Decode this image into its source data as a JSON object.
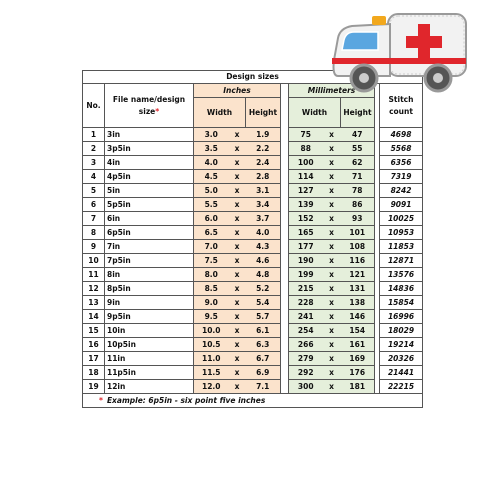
{
  "table": {
    "title": "Design sizes",
    "group_headers": {
      "inches": "Inches",
      "millimeters": "Millimeters"
    },
    "headers": {
      "no": "No.",
      "file": "File name/design size",
      "required_mark": "*",
      "width": "Width",
      "height": "Height",
      "stitch": "Stitch count"
    },
    "separator": "x",
    "rows": [
      [
        "1",
        "3in",
        "3.0",
        "1.9",
        "75",
        "47",
        "4698"
      ],
      [
        "2",
        "3p5in",
        "3.5",
        "2.2",
        "88",
        "55",
        "5568"
      ],
      [
        "3",
        "4in",
        "4.0",
        "2.4",
        "100",
        "62",
        "6356"
      ],
      [
        "4",
        "4p5in",
        "4.5",
        "2.8",
        "114",
        "71",
        "7319"
      ],
      [
        "5",
        "5in",
        "5.0",
        "3.1",
        "127",
        "78",
        "8242"
      ],
      [
        "6",
        "5p5in",
        "5.5",
        "3.4",
        "139",
        "86",
        "9091"
      ],
      [
        "7",
        "6in",
        "6.0",
        "3.7",
        "152",
        "93",
        "10025"
      ],
      [
        "8",
        "6p5in",
        "6.5",
        "4.0",
        "165",
        "101",
        "10953"
      ],
      [
        "9",
        "7in",
        "7.0",
        "4.3",
        "177",
        "108",
        "11853"
      ],
      [
        "10",
        "7p5in",
        "7.5",
        "4.6",
        "190",
        "116",
        "12871"
      ],
      [
        "11",
        "8in",
        "8.0",
        "4.8",
        "199",
        "121",
        "13576"
      ],
      [
        "12",
        "8p5in",
        "8.5",
        "5.2",
        "215",
        "131",
        "14836"
      ],
      [
        "13",
        "9in",
        "9.0",
        "5.4",
        "228",
        "138",
        "15854"
      ],
      [
        "14",
        "9p5in",
        "9.5",
        "5.7",
        "241",
        "146",
        "16996"
      ],
      [
        "15",
        "10in",
        "10.0",
        "6.1",
        "254",
        "154",
        "18029"
      ],
      [
        "16",
        "10p5in",
        "10.5",
        "6.3",
        "266",
        "161",
        "19214"
      ],
      [
        "17",
        "11in",
        "11.0",
        "6.7",
        "279",
        "169",
        "20326"
      ],
      [
        "18",
        "11p5in",
        "11.5",
        "6.9",
        "292",
        "176",
        "21441"
      ],
      [
        "19",
        "12in",
        "12.0",
        "7.1",
        "300",
        "181",
        "22215"
      ]
    ],
    "footnote": "Example: 6p5in - six point five inches"
  }
}
